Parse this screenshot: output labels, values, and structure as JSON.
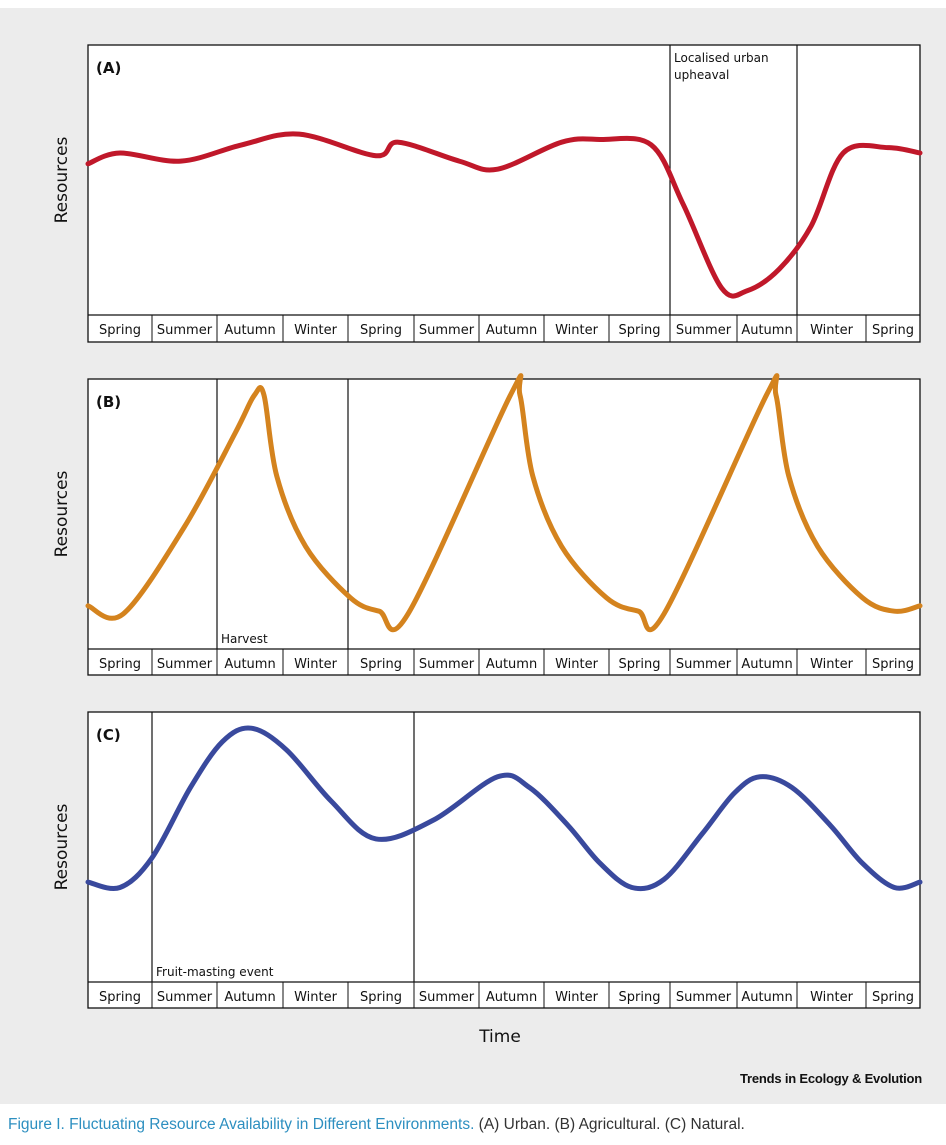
{
  "chart_data": [
    {
      "type": "line",
      "panel_label": "(A)",
      "ylabel": "Resources",
      "color": "#c0182a",
      "seasons": [
        "Spring",
        "Summer",
        "Autumn",
        "Winter",
        "Spring",
        "Summer",
        "Autumn",
        "Winter",
        "Spring",
        "Summer",
        "Autumn",
        "Winter",
        "Spring"
      ],
      "annotation": {
        "text_lines": [
          "Localised urban",
          "upheaval"
        ],
        "x_range": [
          9,
          11
        ]
      },
      "curve": [
        [
          0,
          0.56
        ],
        [
          0.5,
          0.6
        ],
        [
          1.45,
          0.57
        ],
        [
          2.4,
          0.63
        ],
        [
          3.3,
          0.67
        ],
        [
          4.5,
          0.59
        ],
        [
          4.85,
          0.64
        ],
        [
          5.8,
          0.57
        ],
        [
          6.4,
          0.54
        ],
        [
          7.4,
          0.64
        ],
        [
          8.0,
          0.65
        ],
        [
          8.8,
          0.63
        ],
        [
          9.3,
          0.41
        ],
        [
          9.9,
          0.1
        ],
        [
          10.3,
          0.09
        ],
        [
          10.8,
          0.17
        ],
        [
          11.3,
          0.33
        ],
        [
          11.8,
          0.6
        ],
        [
          12.5,
          0.62
        ],
        [
          13,
          0.6
        ]
      ]
    },
    {
      "type": "line",
      "panel_label": "(B)",
      "ylabel": "Resources",
      "color": "#d4831e",
      "seasons": [
        "Spring",
        "Summer",
        "Autumn",
        "Winter",
        "Spring",
        "Summer",
        "Autumn",
        "Winter",
        "Spring",
        "Summer",
        "Autumn",
        "Winter",
        "Spring"
      ],
      "annotation": {
        "text_lines": [
          "Harvest"
        ],
        "x_range": [
          2,
          4
        ]
      },
      "curve": [
        [
          0,
          0.16
        ],
        [
          0.55,
          0.13
        ],
        [
          1.5,
          0.45
        ],
        [
          2.3,
          0.8
        ],
        [
          2.6,
          0.94
        ],
        [
          2.75,
          0.94
        ],
        [
          2.95,
          0.64
        ],
        [
          3.4,
          0.38
        ],
        [
          4.1,
          0.19
        ],
        [
          4.55,
          0.14
        ],
        [
          5.0,
          0.13
        ],
        [
          6.6,
          0.94
        ],
        [
          6.75,
          0.94
        ],
        [
          6.95,
          0.64
        ],
        [
          7.4,
          0.38
        ],
        [
          8.1,
          0.19
        ],
        [
          8.6,
          0.14
        ],
        [
          9.0,
          0.13
        ],
        [
          10.6,
          0.94
        ],
        [
          10.75,
          0.94
        ],
        [
          10.95,
          0.64
        ],
        [
          11.4,
          0.38
        ],
        [
          12.1,
          0.19
        ],
        [
          12.6,
          0.14
        ],
        [
          13,
          0.16
        ]
      ]
    },
    {
      "type": "line",
      "panel_label": "(C)",
      "ylabel": "Resources",
      "xlabel": "Time",
      "color": "#39499d",
      "seasons": [
        "Spring",
        "Summer",
        "Autumn",
        "Winter",
        "Spring",
        "Summer",
        "Autumn",
        "Winter",
        "Spring",
        "Summer",
        "Autumn",
        "Winter",
        "Spring"
      ],
      "annotation": {
        "text_lines": [
          "Fruit-masting event"
        ],
        "x_range": [
          1,
          5
        ]
      },
      "curve": [
        [
          0,
          0.37
        ],
        [
          0.5,
          0.35
        ],
        [
          1.0,
          0.46
        ],
        [
          1.6,
          0.72
        ],
        [
          2.1,
          0.89
        ],
        [
          2.55,
          0.94
        ],
        [
          3.1,
          0.86
        ],
        [
          3.8,
          0.67
        ],
        [
          4.5,
          0.53
        ],
        [
          5.4,
          0.6
        ],
        [
          6.4,
          0.76
        ],
        [
          6.9,
          0.72
        ],
        [
          7.5,
          0.58
        ],
        [
          8.0,
          0.44
        ],
        [
          8.5,
          0.35
        ],
        [
          9.0,
          0.38
        ],
        [
          9.6,
          0.55
        ],
        [
          10.1,
          0.7
        ],
        [
          10.5,
          0.76
        ],
        [
          11.0,
          0.72
        ],
        [
          11.6,
          0.58
        ],
        [
          12.1,
          0.44
        ],
        [
          12.6,
          0.35
        ],
        [
          13,
          0.37
        ]
      ]
    }
  ],
  "credit": "Trends in Ecology & Evolution",
  "caption": {
    "title": "Figure I. Fluctuating Resource Availability in Different Environments.",
    "body": " (A) Urban. (B) Agricultural. (C) Natural."
  }
}
